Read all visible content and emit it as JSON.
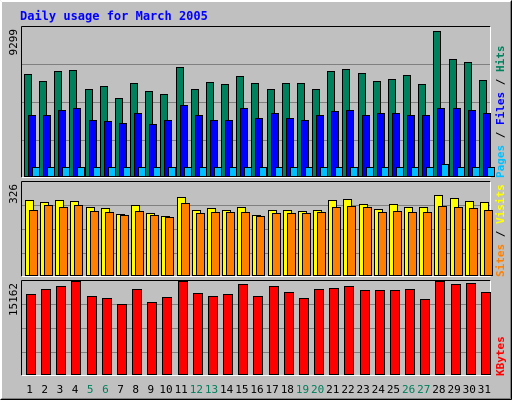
{
  "chart_data": {
    "type": "bar",
    "title": "Daily usage for March 2005",
    "categories": [
      "1",
      "2",
      "3",
      "4",
      "5",
      "6",
      "7",
      "8",
      "9",
      "10",
      "11",
      "12",
      "13",
      "14",
      "15",
      "16",
      "17",
      "18",
      "19",
      "20",
      "21",
      "22",
      "23",
      "24",
      "25",
      "26",
      "27",
      "28",
      "29",
      "30",
      "31"
    ],
    "weekend_days": [
      "5",
      "6",
      "12",
      "13",
      "19",
      "20",
      "26",
      "27"
    ],
    "grid": true,
    "panels": [
      {
        "id": "hits-files-pages",
        "ymax": 9299,
        "ymax_label": "9299",
        "axis_labels": [
          "Pages",
          "Files",
          "Hits"
        ],
        "axis_separator": " / ",
        "series": [
          {
            "name": "Hits",
            "color": "#00805c",
            "values": [
              6370,
              5950,
              6550,
              6650,
              5450,
              5650,
              4900,
              5850,
              5350,
              5150,
              6790,
              5450,
              5900,
              5750,
              6250,
              5850,
              5450,
              5850,
              5850,
              5450,
              6550,
              6700,
              6450,
              5950,
              6050,
              6350,
              5750,
              9050,
              7300,
              7100,
              6000
            ]
          },
          {
            "name": "Files",
            "color": "#0000ff",
            "values": [
              3850,
              3850,
              4150,
              4300,
              3550,
              3450,
              3350,
              3950,
              3300,
              3550,
              4450,
              3850,
              3550,
              3550,
              4300,
              3650,
              3950,
              3650,
              3550,
              3850,
              4100,
              4150,
              3850,
              3950,
              3950,
              3850,
              3850,
              4250,
              4250,
              4150,
              3950
            ]
          },
          {
            "name": "Pages",
            "color": "#00c0ff",
            "values": [
              620,
              620,
              620,
              620,
              620,
              620,
              590,
              620,
              620,
              620,
              620,
              590,
              620,
              620,
              620,
              620,
              620,
              620,
              590,
              620,
              620,
              620,
              620,
              620,
              620,
              620,
              620,
              800,
              620,
              620,
              620
            ]
          }
        ]
      },
      {
        "id": "visits-sites",
        "ymax": 326,
        "ymax_label": "326",
        "axis_labels": [
          "Sites",
          "Visits"
        ],
        "axis_separator": " / ",
        "series": [
          {
            "name": "Visits",
            "color": "#ffff00",
            "values": [
              262,
              256,
              264,
              260,
              240,
              236,
              216,
              246,
              220,
              208,
              274,
              230,
              235,
              230,
              238,
              212,
              230,
              230,
              227,
              230,
              262,
              268,
              250,
              232,
              250,
              240,
              240,
              280,
              270,
              260,
              255
            ]
          },
          {
            "name": "Sites",
            "color": "#ff8000",
            "values": [
              228,
              245,
              240,
              245,
              225,
              223,
              213,
              224,
              210,
              203,
              253,
              218,
              223,
              223,
              223,
              208,
              218,
              218,
              219,
              223,
              238,
              243,
              238,
              223,
              225,
              223,
              223,
              243,
              238,
              235,
              228
            ]
          }
        ]
      },
      {
        "id": "kbytes",
        "ymax": 15162,
        "ymax_label": "15162",
        "axis_labels": [
          "KBytes"
        ],
        "axis_separator": " / ",
        "series": [
          {
            "name": "KBytes",
            "color": "#ff0000",
            "values": [
              13000,
              13900,
              14400,
              15100,
              12800,
              12500,
              11500,
              13800,
              11800,
              12600,
              15100,
              13300,
              12800,
              13000,
              14600,
              12800,
              14300,
              13400,
              12500,
              13800,
              14100,
              14300,
              13700,
              13700,
              13700,
              13900,
              12300,
              15100,
              14600,
              14800,
              13400
            ]
          }
        ]
      }
    ]
  }
}
